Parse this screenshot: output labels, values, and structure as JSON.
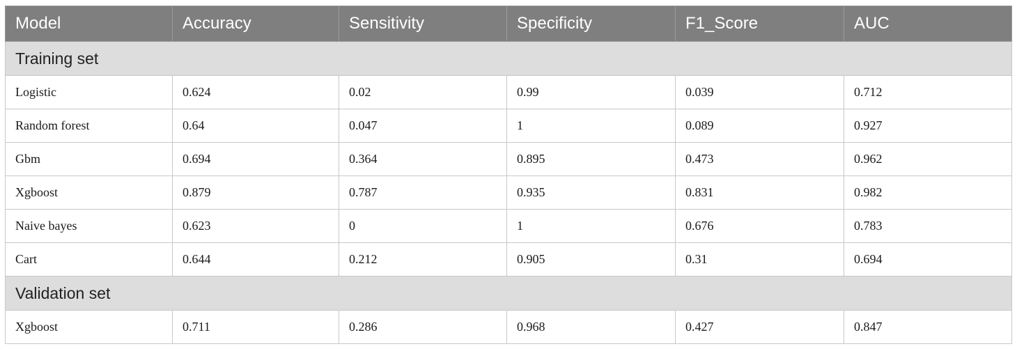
{
  "table": {
    "columns": [
      "Model",
      "Accuracy",
      "Sensitivity",
      "Specificity",
      "F1_Score",
      "AUC"
    ],
    "sections": [
      {
        "label": "Training set",
        "rows": [
          [
            "Logistic",
            "0.624",
            "0.02",
            "0.99",
            "0.039",
            "0.712"
          ],
          [
            "Random forest",
            "0.64",
            "0.047",
            "1",
            "0.089",
            "0.927"
          ],
          [
            "Gbm",
            "0.694",
            "0.364",
            "0.895",
            "0.473",
            "0.962"
          ],
          [
            "Xgboost",
            "0.879",
            "0.787",
            "0.935",
            "0.831",
            "0.982"
          ],
          [
            "Naive bayes",
            "0.623",
            "0",
            "1",
            "0.676",
            "0.783"
          ],
          [
            "Cart",
            "0.644",
            "0.212",
            "0.905",
            "0.31",
            "0.694"
          ]
        ]
      },
      {
        "label": "Validation set",
        "rows": [
          [
            "Xgboost",
            "0.711",
            "0.286",
            "0.968",
            "0.427",
            "0.847"
          ]
        ]
      }
    ]
  }
}
